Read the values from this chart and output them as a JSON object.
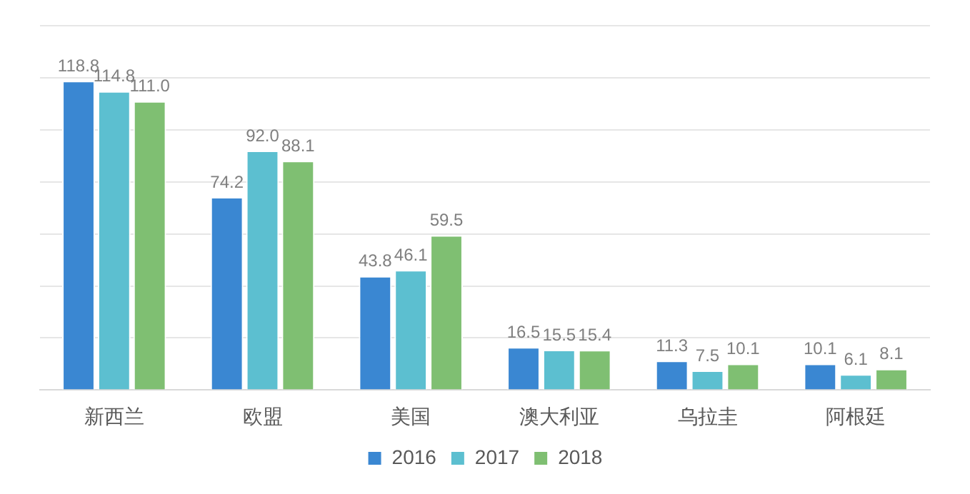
{
  "chart_data": {
    "type": "bar",
    "categories": [
      "新西兰",
      "欧盟",
      "美国",
      "澳大利亚",
      "乌拉圭",
      "阿根廷"
    ],
    "series": [
      {
        "name": "2016",
        "color": "#3a87d2",
        "values": [
          118.8,
          74.2,
          43.8,
          16.5,
          11.3,
          10.1
        ],
        "value_labels": [
          "118.8",
          "74.2",
          "43.8",
          "16.5",
          "11.3",
          "10.1"
        ]
      },
      {
        "name": "2017",
        "color": "#5cbfd0",
        "values": [
          114.8,
          92.0,
          46.1,
          15.5,
          7.5,
          6.1
        ],
        "value_labels": [
          "114.8",
          "92.0",
          "46.1",
          "15.5",
          "7.5",
          "6.1"
        ]
      },
      {
        "name": "2018",
        "color": "#7fbf72",
        "values": [
          111.0,
          88.1,
          59.5,
          15.4,
          10.1,
          8.1
        ],
        "value_labels": [
          "111.0",
          "88.1",
          "59.5",
          "15.4",
          "10.1",
          "8.1"
        ]
      }
    ],
    "ylim": [
      0,
      140
    ],
    "yticks": [
      {
        "value": 0,
        "label": null
      },
      {
        "value": 20,
        "label": null
      },
      {
        "value": 40,
        "label": null
      },
      {
        "value": 60,
        "label": null
      },
      {
        "value": 80,
        "label": null
      },
      {
        "value": 100,
        "label": null
      },
      {
        "value": 120,
        "label": null
      },
      {
        "value": 140,
        "label": null
      }
    ],
    "tick_labels": "x",
    "grid": "y",
    "legend": "bottom"
  }
}
